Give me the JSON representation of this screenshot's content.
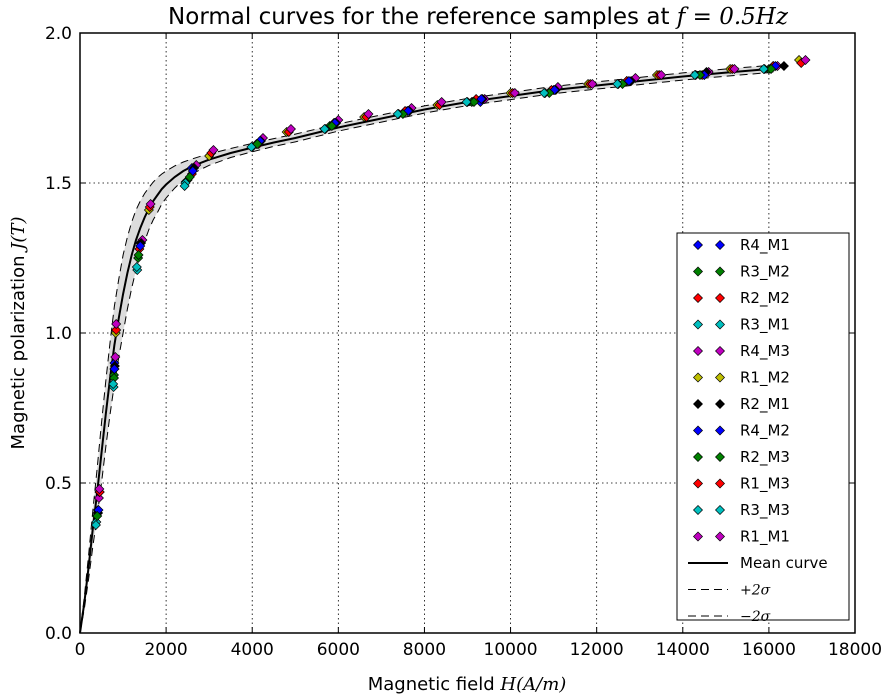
{
  "chart_data": {
    "type": "scatter",
    "title_prefix": "Normal curves for the reference samples at ",
    "title_math": "f = 0.5Hz",
    "xlabel_prefix": "Magnetic field ",
    "xlabel_math": "H(A/m)",
    "ylabel_prefix": "Magnetic polarization ",
    "ylabel_math": "J(T)",
    "xlim": [
      0,
      18000
    ],
    "ylim": [
      0.0,
      2.0
    ],
    "x_ticks": [
      0,
      2000,
      4000,
      6000,
      8000,
      10000,
      12000,
      14000,
      16000,
      18000
    ],
    "y_ticks": [
      0.0,
      0.5,
      1.0,
      1.5,
      2.0
    ],
    "x_tick_labels": [
      "0",
      "2000",
      "4000",
      "6000",
      "8000",
      "10000",
      "12000",
      "14000",
      "16000",
      "18000"
    ],
    "y_tick_labels": [
      "0.0",
      "0.5",
      "1.0",
      "1.5",
      "2.0"
    ],
    "grid": true,
    "legend_position": "lower-right",
    "mean_curve": {
      "name": "Mean curve",
      "x": [
        0,
        100,
        200,
        300,
        400,
        500,
        600,
        700,
        800,
        900,
        1000,
        1100,
        1200,
        1300,
        1400,
        1500,
        1600,
        1700,
        1800,
        1900,
        2000,
        2200,
        2400,
        2600,
        2800,
        3000,
        3500,
        4000,
        4500,
        5000,
        6000,
        7000,
        8000,
        9000,
        10000,
        11000,
        12000,
        13000,
        14000,
        15000,
        16000,
        16200
      ],
      "y": [
        0.0,
        0.1,
        0.22,
        0.35,
        0.47,
        0.6,
        0.73,
        0.85,
        0.96,
        1.05,
        1.13,
        1.2,
        1.26,
        1.31,
        1.35,
        1.385,
        1.415,
        1.44,
        1.46,
        1.48,
        1.495,
        1.52,
        1.54,
        1.555,
        1.567,
        1.578,
        1.6,
        1.618,
        1.635,
        1.65,
        1.685,
        1.715,
        1.745,
        1.77,
        1.79,
        1.81,
        1.825,
        1.84,
        1.855,
        1.868,
        1.88,
        1.885
      ],
      "upper_name": "+2σ",
      "upper_y": [
        0.0,
        0.12,
        0.26,
        0.41,
        0.55,
        0.7,
        0.84,
        0.97,
        1.09,
        1.18,
        1.26,
        1.32,
        1.37,
        1.41,
        1.44,
        1.465,
        1.485,
        1.503,
        1.518,
        1.53,
        1.54,
        1.557,
        1.57,
        1.58,
        1.589,
        1.597,
        1.615,
        1.632,
        1.648,
        1.663,
        1.697,
        1.727,
        1.757,
        1.782,
        1.802,
        1.822,
        1.837,
        1.852,
        1.867,
        1.88,
        1.892,
        1.897
      ],
      "lower_name": "−2σ",
      "lower_y": [
        0.0,
        0.08,
        0.18,
        0.29,
        0.39,
        0.5,
        0.62,
        0.73,
        0.83,
        0.92,
        1.0,
        1.08,
        1.15,
        1.21,
        1.26,
        1.305,
        1.345,
        1.377,
        1.402,
        1.43,
        1.45,
        1.483,
        1.51,
        1.53,
        1.545,
        1.559,
        1.585,
        1.604,
        1.622,
        1.637,
        1.673,
        1.703,
        1.733,
        1.758,
        1.778,
        1.798,
        1.813,
        1.828,
        1.843,
        1.856,
        1.868,
        1.873
      ]
    },
    "series": [
      {
        "name": "R4_M1",
        "color": "#0000ff",
        "x": [
          420,
          800,
          1400,
          2600,
          4200,
          5900,
          7600,
          9300,
          11000,
          12700,
          14500,
          16100
        ],
        "y": [
          0.41,
          0.9,
          1.3,
          1.55,
          1.64,
          1.7,
          1.74,
          1.77,
          1.81,
          1.84,
          1.86,
          1.89
        ]
      },
      {
        "name": "R3_M2",
        "color": "#008000",
        "x": [
          390,
          790,
          1350,
          2500,
          4100,
          5800,
          7400,
          9100,
          10800,
          12500,
          14300,
          16000
        ],
        "y": [
          0.39,
          0.86,
          1.25,
          1.51,
          1.63,
          1.69,
          1.73,
          1.77,
          1.8,
          1.83,
          1.86,
          1.88
        ]
      },
      {
        "name": "R2_M2",
        "color": "#ff0000",
        "x": [
          410,
          800,
          1380,
          2600,
          4150,
          5900,
          7550,
          9200,
          10950,
          12700,
          14450,
          16100
        ],
        "y": [
          0.4,
          0.88,
          1.28,
          1.53,
          1.63,
          1.7,
          1.74,
          1.78,
          1.81,
          1.84,
          1.86,
          1.89
        ]
      },
      {
        "name": "R3_M1",
        "color": "#00bfbf",
        "x": [
          380,
          780,
          1330,
          2450,
          4000,
          5700,
          7400,
          9000,
          10800,
          12500,
          14300,
          15900
        ],
        "y": [
          0.37,
          0.82,
          1.21,
          1.5,
          1.62,
          1.68,
          1.73,
          1.77,
          1.8,
          1.83,
          1.86,
          1.88
        ]
      },
      {
        "name": "R4_M3",
        "color": "#bf00bf",
        "x": [
          440,
          820,
          1450,
          2700,
          4250,
          6000,
          7700,
          9400,
          11100,
          12900,
          14600,
          16200
        ],
        "y": [
          0.45,
          0.92,
          1.31,
          1.56,
          1.65,
          1.71,
          1.75,
          1.78,
          1.82,
          1.85,
          1.87,
          1.89
        ]
      },
      {
        "name": "R1_M2",
        "color": "#bfbf00",
        "x": [
          450,
          830,
          1600,
          3000,
          4800,
          6600,
          8300,
          10000,
          11800,
          13400,
          15100,
          16700
        ],
        "y": [
          0.47,
          1.0,
          1.41,
          1.59,
          1.67,
          1.72,
          1.76,
          1.8,
          1.83,
          1.86,
          1.88,
          1.91
        ]
      },
      {
        "name": "R2_M1",
        "color": "#000000",
        "x": [
          420,
          810,
          1420,
          2650,
          4200,
          5950,
          7650,
          9350,
          11050,
          12800,
          14550,
          16350
        ],
        "y": [
          0.4,
          0.89,
          1.3,
          1.55,
          1.64,
          1.7,
          1.74,
          1.78,
          1.81,
          1.84,
          1.87,
          1.89
        ]
      },
      {
        "name": "R4_M2",
        "color": "#0000ff",
        "x": [
          430,
          800,
          1400,
          2620,
          4180,
          5920,
          7620,
          9320,
          11020,
          12750,
          14500,
          16150
        ],
        "y": [
          0.41,
          0.88,
          1.29,
          1.54,
          1.64,
          1.7,
          1.74,
          1.78,
          1.81,
          1.84,
          1.86,
          1.89
        ]
      },
      {
        "name": "R2_M3",
        "color": "#008000",
        "x": [
          400,
          790,
          1360,
          2550,
          4120,
          5850,
          7500,
          9150,
          10900,
          12600,
          14400,
          16050
        ],
        "y": [
          0.39,
          0.85,
          1.26,
          1.52,
          1.63,
          1.69,
          1.73,
          1.77,
          1.8,
          1.83,
          1.86,
          1.88
        ]
      },
      {
        "name": "R1_M3",
        "color": "#ff0000",
        "x": [
          460,
          840,
          1620,
          3050,
          4850,
          6650,
          8350,
          10050,
          11850,
          13450,
          15150,
          16750
        ],
        "y": [
          0.47,
          1.01,
          1.42,
          1.6,
          1.67,
          1.72,
          1.76,
          1.8,
          1.83,
          1.86,
          1.88,
          1.9
        ]
      },
      {
        "name": "R3_M3",
        "color": "#00bfbf",
        "x": [
          370,
          770,
          1320,
          2430,
          3980,
          5680,
          7380,
          8980,
          10780,
          12480,
          14280,
          15880
        ],
        "y": [
          0.36,
          0.83,
          1.22,
          1.49,
          1.62,
          1.68,
          1.73,
          1.77,
          1.8,
          1.83,
          1.86,
          1.88
        ]
      },
      {
        "name": "R1_M1",
        "color": "#bf00bf",
        "x": [
          450,
          840,
          1640,
          3100,
          4900,
          6700,
          8400,
          10100,
          11900,
          13500,
          15200,
          16850
        ],
        "y": [
          0.48,
          1.03,
          1.43,
          1.61,
          1.68,
          1.73,
          1.77,
          1.8,
          1.83,
          1.86,
          1.88,
          1.91
        ]
      }
    ]
  }
}
